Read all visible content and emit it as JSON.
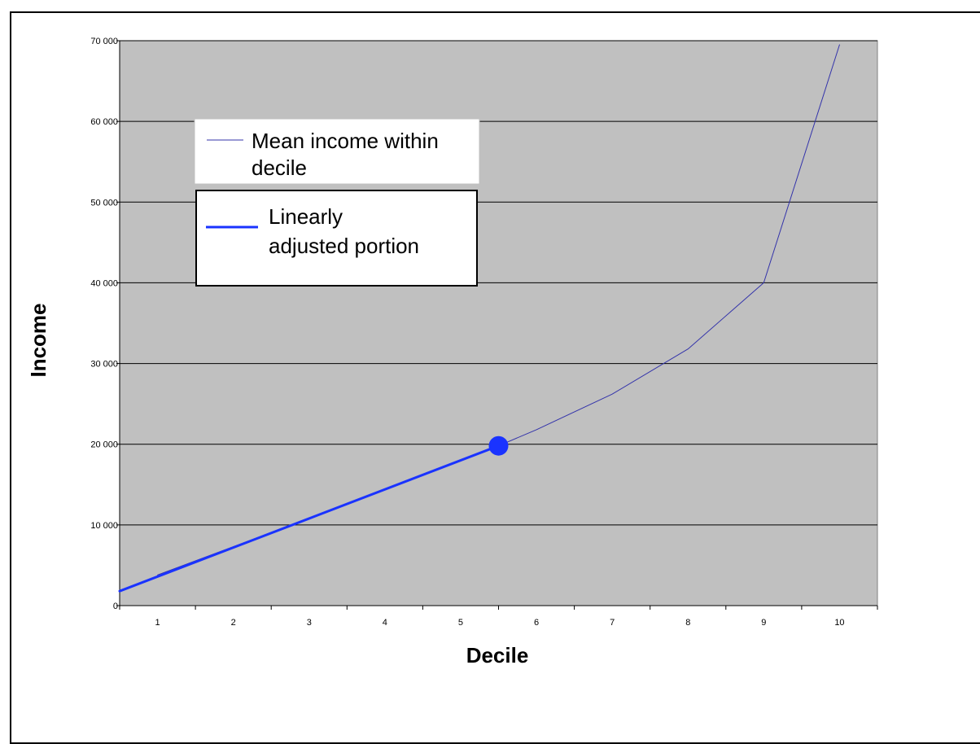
{
  "chart_data": {
    "type": "line",
    "title": "",
    "xlabel": "Decile",
    "ylabel": "Income",
    "x_categories": [
      "1",
      "2",
      "3",
      "4",
      "5",
      "6",
      "7",
      "8",
      "9",
      "10"
    ],
    "y_ticks": [
      0,
      10000,
      20000,
      30000,
      40000,
      50000,
      60000,
      70000
    ],
    "y_tick_labels": [
      "0",
      "10 000",
      "20 000",
      "30 000",
      "40 000",
      "50 000",
      "60 000",
      "70 000"
    ],
    "ylim": [
      0,
      70000
    ],
    "grid": "horizontal",
    "plot_background": "#c0c0c0",
    "series": [
      {
        "name": "Mean income within decile",
        "color": "#3333aa",
        "line_style": "thin",
        "points": [
          {
            "x": 1,
            "y": 3800
          },
          {
            "x": 2,
            "y": 7300
          },
          {
            "x": 3,
            "y": 10800
          },
          {
            "x": 4,
            "y": 14400
          },
          {
            "x": 5,
            "y": 18000
          },
          {
            "x": 5.5,
            "y": 19800
          },
          {
            "x": 6,
            "y": 21800
          },
          {
            "x": 7,
            "y": 26200
          },
          {
            "x": 8,
            "y": 31800
          },
          {
            "x": 9,
            "y": 40000
          },
          {
            "x": 10,
            "y": 69500
          }
        ]
      },
      {
        "name": "Linearly adjusted portion",
        "color": "#1a33ff",
        "line_style": "thick",
        "points": [
          {
            "x": 0.5,
            "y": 1800
          },
          {
            "x": 5.5,
            "y": 19800
          }
        ]
      }
    ],
    "marker": {
      "x": 5.5,
      "y": 19800,
      "color": "#1a33ff"
    },
    "legend_placement": "upper-left inside plot area"
  }
}
